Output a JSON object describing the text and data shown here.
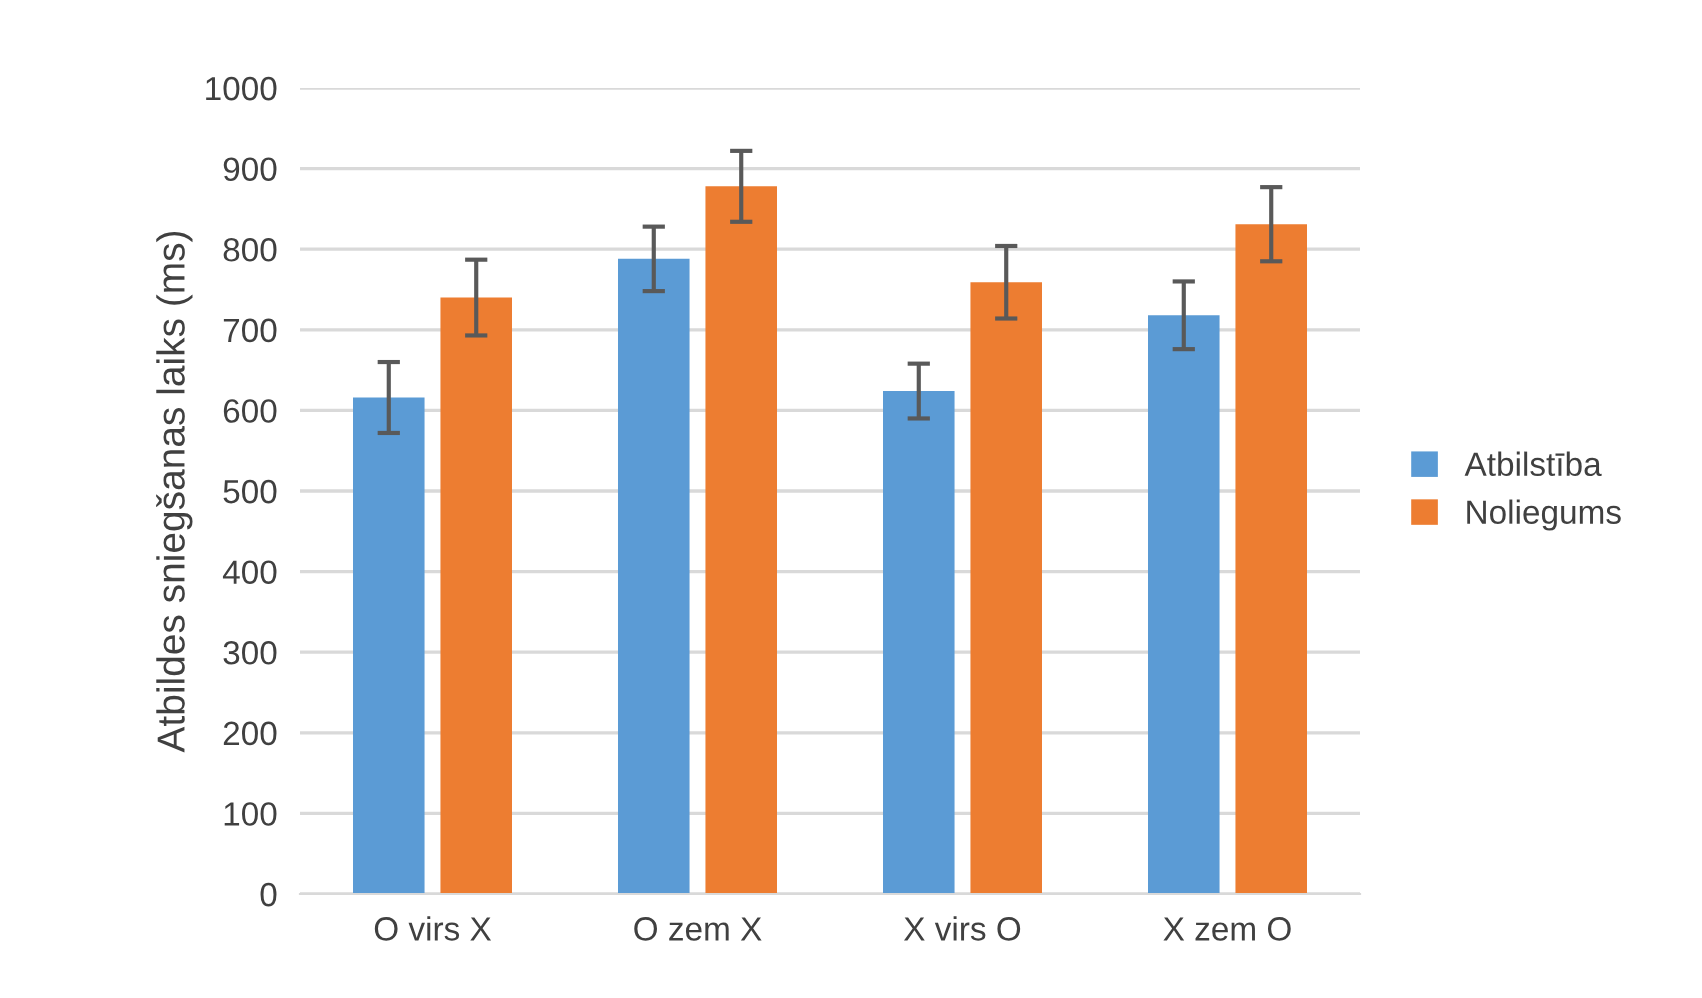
{
  "chart_data": {
    "type": "bar",
    "ylabel": "Atbildes sniegšanas laiks (ms)",
    "categories": [
      "O virs X",
      "O zem X",
      "X virs O",
      "X zem O"
    ],
    "series": [
      {
        "name": "Atbilstība",
        "color": "#5b9bd5",
        "values": [
          616,
          788,
          624,
          718
        ],
        "errors": [
          44,
          40,
          34,
          42
        ]
      },
      {
        "name": "Noliegums",
        "color": "#ed7d31",
        "values": [
          740,
          878,
          759,
          831
        ],
        "errors": [
          47,
          44,
          45,
          46
        ]
      }
    ],
    "ylim": [
      0,
      1000
    ],
    "yticks": [
      0,
      100,
      200,
      300,
      400,
      500,
      600,
      700,
      800,
      900,
      1000
    ],
    "grid": "y",
    "legend": "right"
  }
}
